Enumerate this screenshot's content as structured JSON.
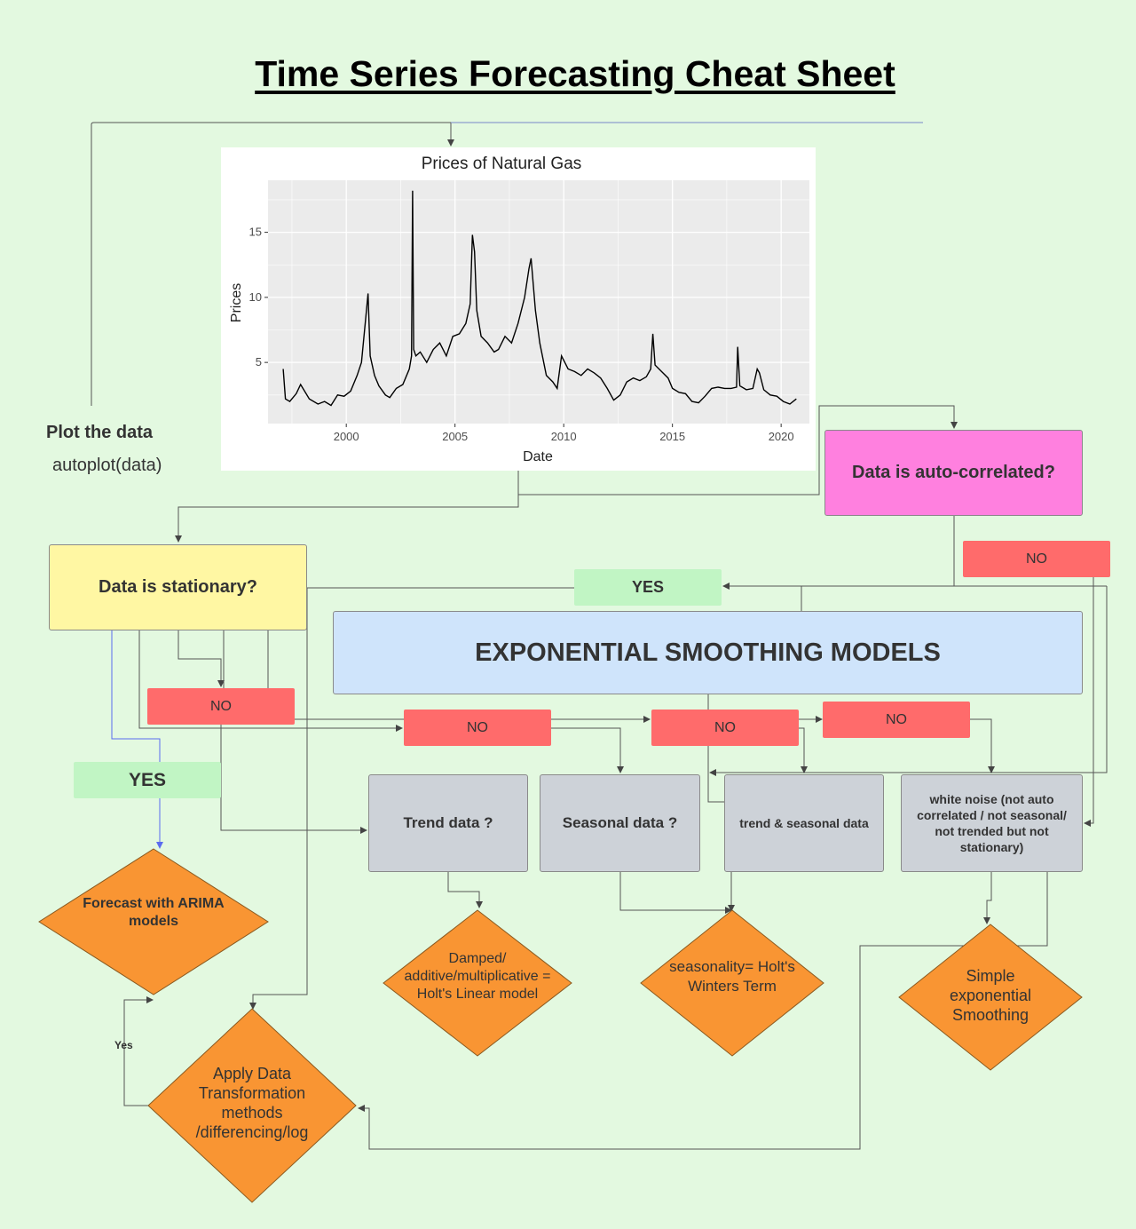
{
  "title": "Time Series Forecasting Cheat Sheet",
  "plot_step": {
    "label": "Plot the data",
    "code": "autoplot(data)"
  },
  "nodes": {
    "stationary": "Data is stationary?",
    "autocorrelated": "Data is auto-correlated?",
    "exp_smoothing": "EXPONENTIAL SMOOTHING MODELS",
    "trend": "Trend data ?",
    "seasonal": "Seasonal data ?",
    "trend_seasonal": "trend & seasonal data",
    "white_noise": "white noise (not auto correlated / not seasonal/ not trended but not stationary)",
    "arima": "Forecast with ARIMA models",
    "holt_linear": "Damped/ additive/multiplicative = Holt's Linear model",
    "holt_winters": "seasonality= Holt's Winters Term",
    "simple_exp": "Simple exponential Smoothing",
    "transform": "Apply Data Transformation methods /differencing/log"
  },
  "labels": {
    "no": "NO",
    "yes_upper": "YES",
    "yes_small": "Yes"
  },
  "colors": {
    "background": "#e3f9e0",
    "yellow": "#fff7a3",
    "pink": "#ff80df",
    "blue": "#cfe4fb",
    "gray": "#cdd2d8",
    "red": "#ff6b6b",
    "green": "#c1f5c4",
    "orange": "#f99533"
  },
  "chart_data": {
    "type": "line",
    "title": "Prices of Natural Gas",
    "xlabel": "Date",
    "ylabel": "Prices",
    "xlim": [
      1996.4,
      2021.3
    ],
    "ylim": [
      0.3,
      19
    ],
    "x_ticks": [
      2000,
      2005,
      2010,
      2015,
      2020
    ],
    "y_ticks": [
      5,
      10,
      15
    ],
    "grid": true,
    "series": [
      {
        "x": [
          1997.1,
          1997.2,
          1997.4,
          1997.7,
          1997.9,
          1998.3,
          1998.7,
          1999.0,
          1999.3,
          1999.6,
          1999.9,
          2000.2,
          2000.5,
          2000.7,
          2000.9,
          2001.0,
          2001.1,
          2001.3,
          2001.5,
          2001.8,
          2002.0,
          2002.3,
          2002.6,
          2002.9,
          2003.0,
          2003.05,
          2003.1,
          2003.2,
          2003.4,
          2003.7,
          2004.0,
          2004.3,
          2004.6,
          2004.9,
          2005.2,
          2005.5,
          2005.7,
          2005.8,
          2005.9,
          2006.0,
          2006.2,
          2006.5,
          2006.8,
          2007.0,
          2007.3,
          2007.6,
          2007.9,
          2008.2,
          2008.4,
          2008.5,
          2008.7,
          2008.9,
          2009.2,
          2009.5,
          2009.7,
          2009.9,
          2010.2,
          2010.5,
          2010.8,
          2011.1,
          2011.4,
          2011.7,
          2012.0,
          2012.3,
          2012.6,
          2012.9,
          2013.2,
          2013.5,
          2013.8,
          2014.0,
          2014.1,
          2014.2,
          2014.5,
          2014.8,
          2015.0,
          2015.3,
          2015.6,
          2015.9,
          2016.2,
          2016.5,
          2016.8,
          2017.1,
          2017.4,
          2017.7,
          2017.95,
          2018.0,
          2018.1,
          2018.4,
          2018.7,
          2018.9,
          2019.0,
          2019.2,
          2019.5,
          2019.8,
          2020.1,
          2020.4,
          2020.7
        ],
        "y": [
          4.5,
          2.2,
          2.0,
          2.6,
          3.3,
          2.2,
          1.8,
          2.0,
          1.7,
          2.5,
          2.4,
          2.8,
          4.0,
          5.0,
          8.5,
          10.3,
          5.5,
          4.0,
          3.2,
          2.5,
          2.3,
          3.0,
          3.3,
          4.5,
          5.5,
          18.2,
          6.0,
          5.5,
          5.8,
          5.0,
          6.0,
          6.5,
          5.5,
          7.0,
          7.2,
          8.0,
          9.5,
          14.8,
          13.5,
          9.0,
          7.0,
          6.5,
          5.8,
          6.0,
          7.0,
          6.5,
          8.0,
          10.0,
          12.2,
          13.0,
          9.0,
          6.5,
          4.0,
          3.5,
          3.0,
          5.5,
          4.5,
          4.3,
          4.0,
          4.5,
          4.2,
          3.8,
          3.0,
          2.1,
          2.5,
          3.5,
          3.8,
          3.6,
          3.9,
          4.5,
          7.2,
          4.8,
          4.3,
          3.8,
          3.0,
          2.7,
          2.6,
          2.0,
          1.9,
          2.4,
          3.0,
          3.1,
          3.0,
          3.0,
          3.1,
          6.2,
          3.2,
          2.9,
          3.0,
          4.5,
          4.2,
          2.9,
          2.5,
          2.4,
          2.0,
          1.8,
          2.2
        ]
      }
    ]
  }
}
